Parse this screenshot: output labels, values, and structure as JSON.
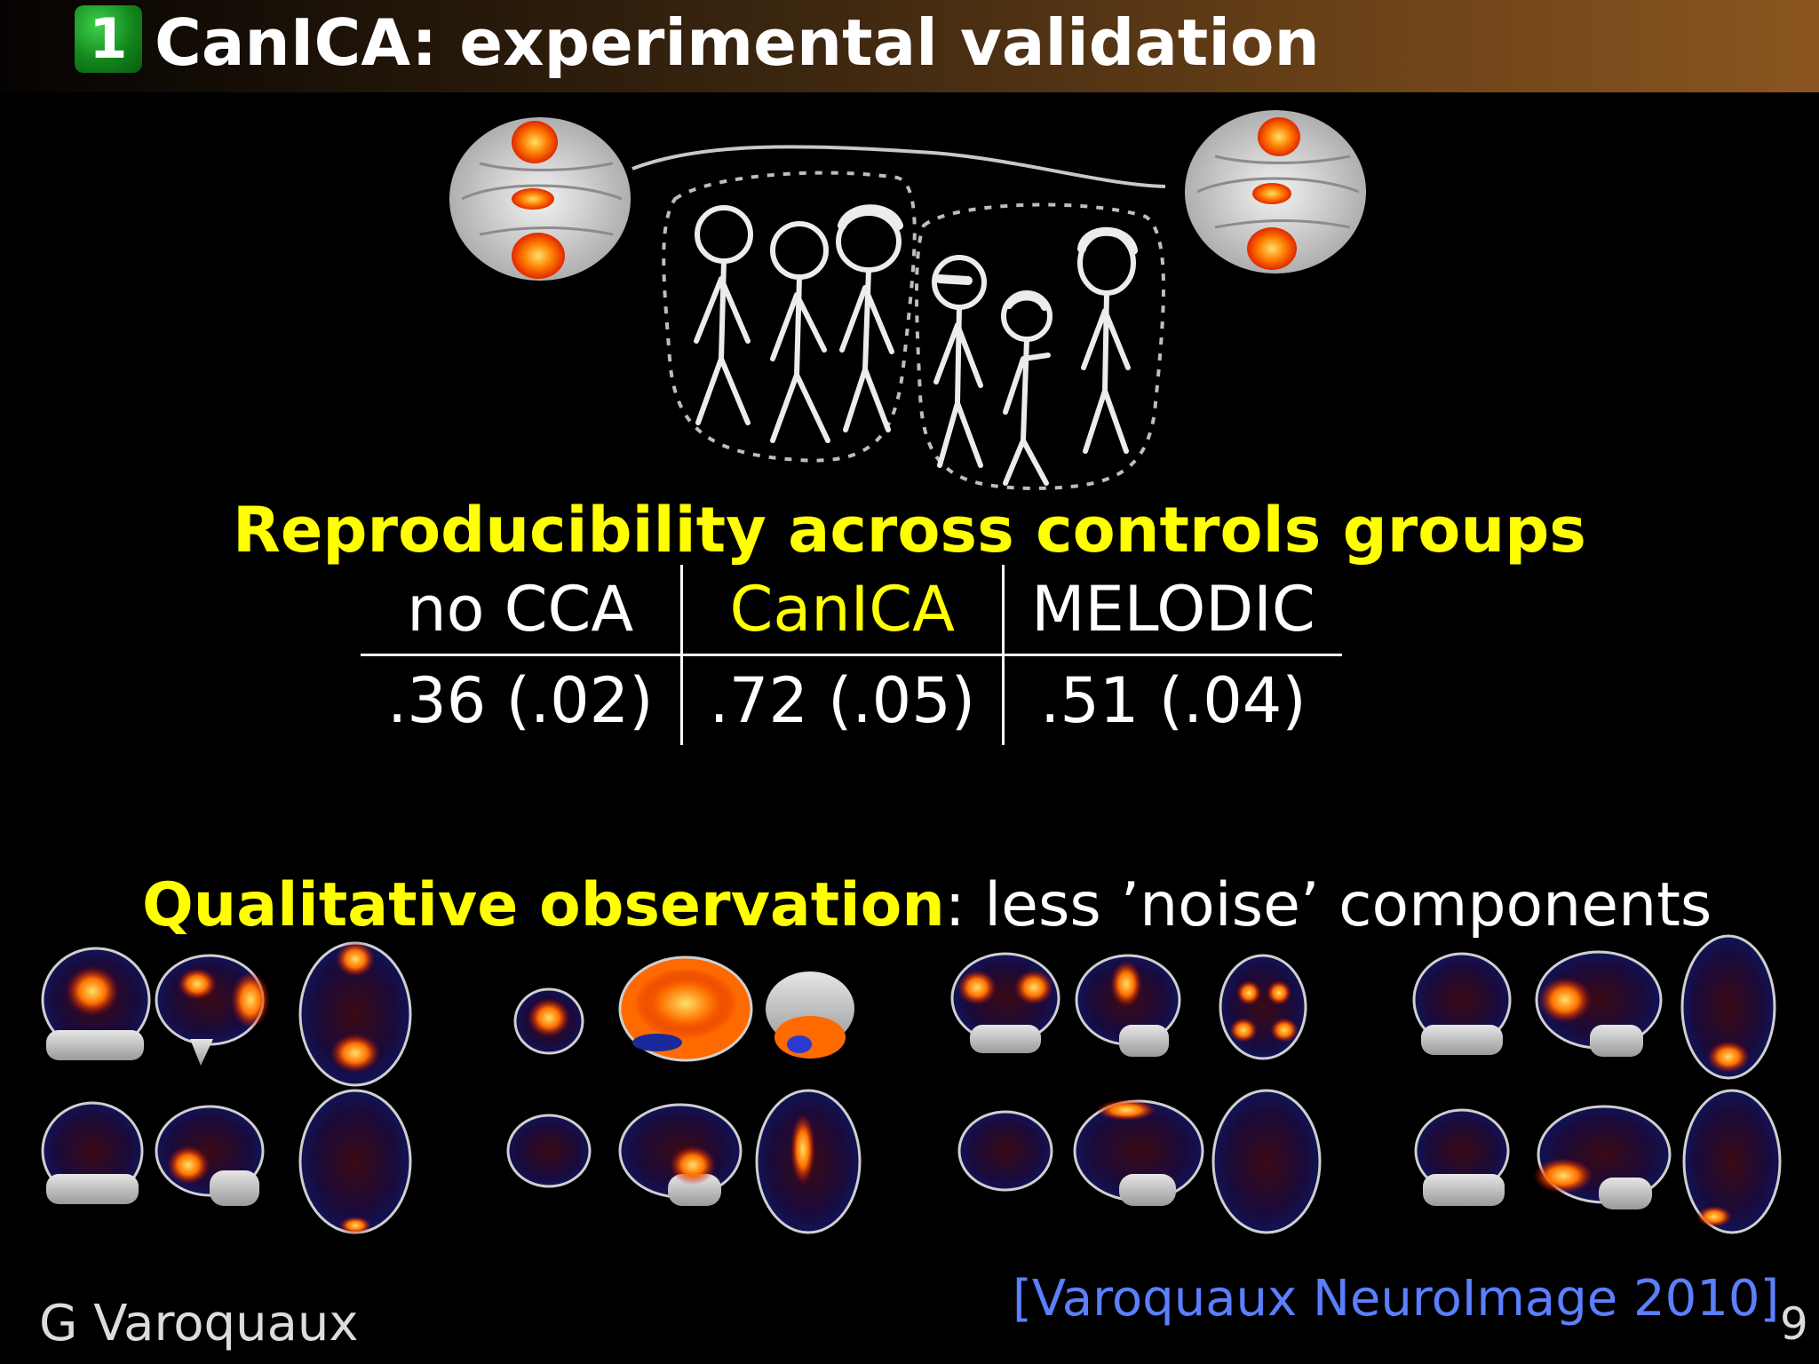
{
  "header": {
    "section_number": "1",
    "title": "CanICA: experimental validation"
  },
  "reproducibility": {
    "heading": "Reproducibility across controls groups",
    "columns": [
      "no CCA",
      "CanICA",
      "MELODIC"
    ],
    "values": [
      ".36 (.02)",
      ".72 (.05)",
      ".51 (.04)"
    ]
  },
  "qualitative": {
    "label": "Qualitative observation",
    "text": ": less ’noise’ components"
  },
  "footer": {
    "author": "G Varoquaux",
    "citation": "[Varoquaux NeuroImage 2010]",
    "page_number": "9"
  },
  "colors": {
    "accent": "#ffff00",
    "citation": "#5b7fff",
    "section_badge": "#1a9a24"
  }
}
